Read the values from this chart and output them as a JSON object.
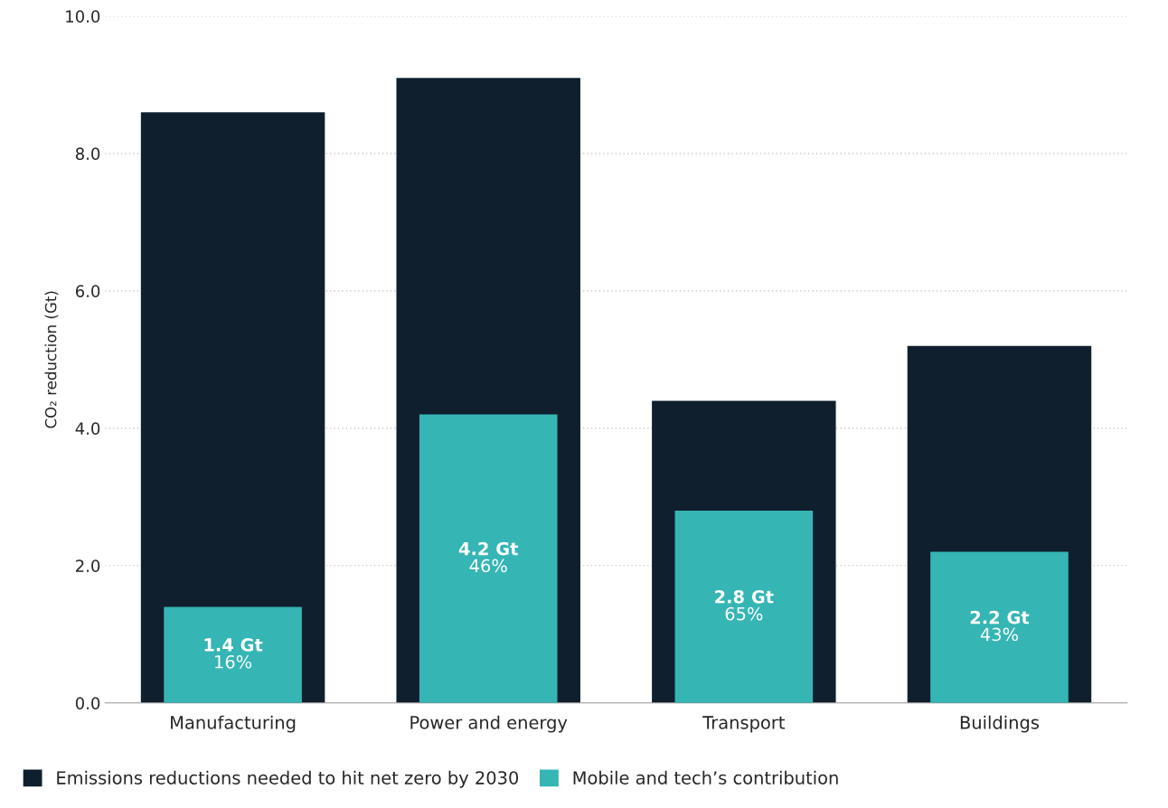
{
  "chart_data": {
    "type": "bar",
    "ylabel": "CO₂ reduction (Gt)",
    "categories": [
      "Manufacturing",
      "Power and energy",
      "Transport",
      "Buildings"
    ],
    "series": [
      {
        "name": "Emissions reductions needed to hit net zero by 2030",
        "color": "#0f1f2e",
        "values": [
          8.6,
          9.1,
          4.4,
          5.2
        ]
      },
      {
        "name": "Mobile and tech’s contribution",
        "color": "#36b5b5",
        "values": [
          1.4,
          4.2,
          2.8,
          2.2
        ],
        "value_labels": [
          "1.4 Gt\n16%",
          "4.2 Gt\n46%",
          "2.8 Gt\n65%",
          "2.2 Gt\n43%"
        ]
      }
    ],
    "ylim": [
      0,
      10
    ],
    "yticks": [
      {
        "value": 0,
        "label": "0.0"
      },
      {
        "value": 2,
        "label": "2.0"
      },
      {
        "value": 4,
        "label": "4.0"
      },
      {
        "value": 6,
        "label": "6.0"
      },
      {
        "value": 8,
        "label": "8.0"
      },
      {
        "value": 10,
        "label": "10.0"
      }
    ],
    "grid": "y",
    "legend": "bottom"
  }
}
